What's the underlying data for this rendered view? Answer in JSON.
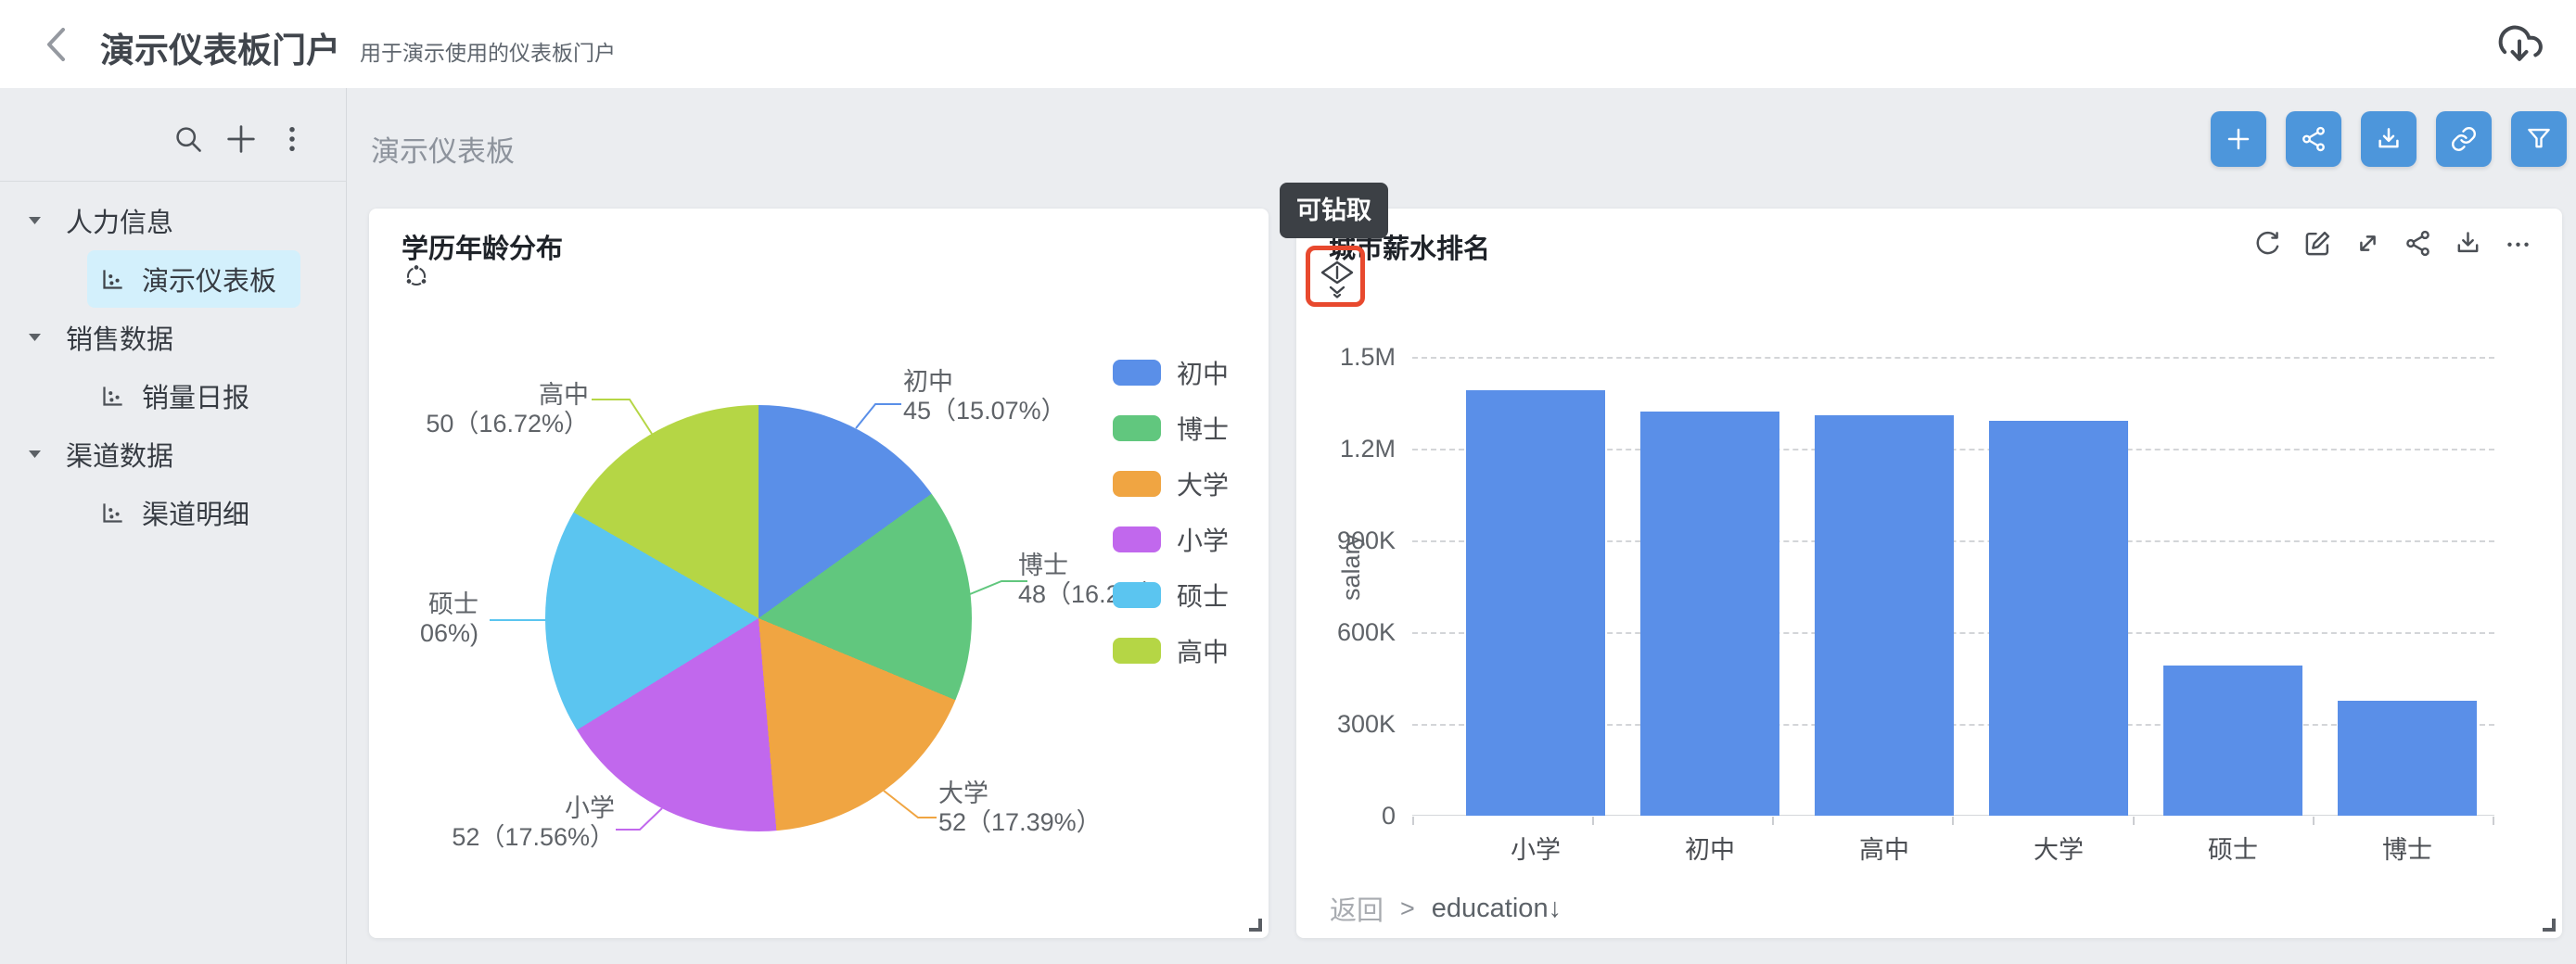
{
  "colors": {
    "primary": "#4D96DB",
    "bar-blue": "#5A8FE8",
    "select-bg": "#D3F0FC",
    "tooltip-bg": "#3C4045",
    "drill-red": "#E8492E",
    "page-bg": "#EBEDF0",
    "slice0": "#5A8FE8",
    "slice1": "#61C77E",
    "slice2": "#F0A542",
    "slice3": "#C168ED",
    "slice4": "#5BC5F0",
    "slice5": "#B5D645"
  },
  "header": {
    "title": "演示仪表板门户",
    "subtitle": "用于演示使用的仪表板门户"
  },
  "sidebar": {
    "groups": [
      {
        "label": "人力信息",
        "items": [
          {
            "label": "演示仪表板",
            "selected": true
          }
        ]
      },
      {
        "label": "销售数据",
        "items": [
          {
            "label": "销量日报",
            "selected": false
          }
        ]
      },
      {
        "label": "渠道数据",
        "items": [
          {
            "label": "渠道明细",
            "selected": false
          }
        ]
      }
    ]
  },
  "main": {
    "title": "演示仪表板"
  },
  "pie_card": {
    "title": "学历年龄分布",
    "labels": [
      {
        "line1": "初中",
        "line2": "45（15.07%）"
      },
      {
        "line1": "博士",
        "line2": "48（16.2%）"
      },
      {
        "line1": "大学",
        "line2": "52（17.39%）"
      },
      {
        "line1": "小学",
        "line2": "52（17.56%）"
      },
      {
        "line1": "硕士",
        "line2": "06%)"
      },
      {
        "line1": "高中",
        "line2": "50（16.72%）"
      }
    ]
  },
  "bar_card": {
    "title": "城市薪水排名",
    "tooltip": "可钻取",
    "drill": {
      "back": "返回",
      "separator": ">",
      "field": "education↓"
    }
  },
  "chart_data": [
    {
      "type": "pie",
      "title": "学历年龄分布",
      "slices": [
        {
          "name": "初中",
          "value": 45,
          "pct_label": "15.07%",
          "angle_pct": 15.07,
          "color": "#5A8FE8"
        },
        {
          "name": "博士",
          "value": 48,
          "pct_label": "16.2%",
          "angle_pct": 16.2,
          "color": "#61C77E"
        },
        {
          "name": "大学",
          "value": 52,
          "pct_label": "17.39%",
          "angle_pct": 17.39,
          "color": "#F0A542"
        },
        {
          "name": "小学",
          "value": 52,
          "pct_label": "17.56%",
          "angle_pct": 17.56,
          "color": "#C168ED"
        },
        {
          "name": "硕士",
          "pct_label_visible": "06%)",
          "angle_pct": 17.06,
          "color": "#5BC5F0"
        },
        {
          "name": "高中",
          "value": 50,
          "pct_label": "16.72%",
          "angle_pct": 16.72,
          "color": "#B5D645"
        }
      ],
      "legend": [
        "初中",
        "博士",
        "大学",
        "小学",
        "硕士",
        "高中"
      ],
      "legend_position": "right"
    },
    {
      "type": "bar",
      "title": "城市薪水排名",
      "categories": [
        "小学",
        "初中",
        "高中",
        "大学",
        "硕士",
        "博士"
      ],
      "values": [
        1390000,
        1320000,
        1310000,
        1290000,
        490000,
        375000
      ],
      "ylabel": "salary",
      "yticks": [
        "1.5M",
        "1.2M",
        "900K",
        "600K",
        "300K",
        "0"
      ],
      "ylim": [
        0,
        1500000
      ],
      "grid": "dashed-horizontal",
      "drill_breadcrumb": "返回 > education↓"
    }
  ]
}
